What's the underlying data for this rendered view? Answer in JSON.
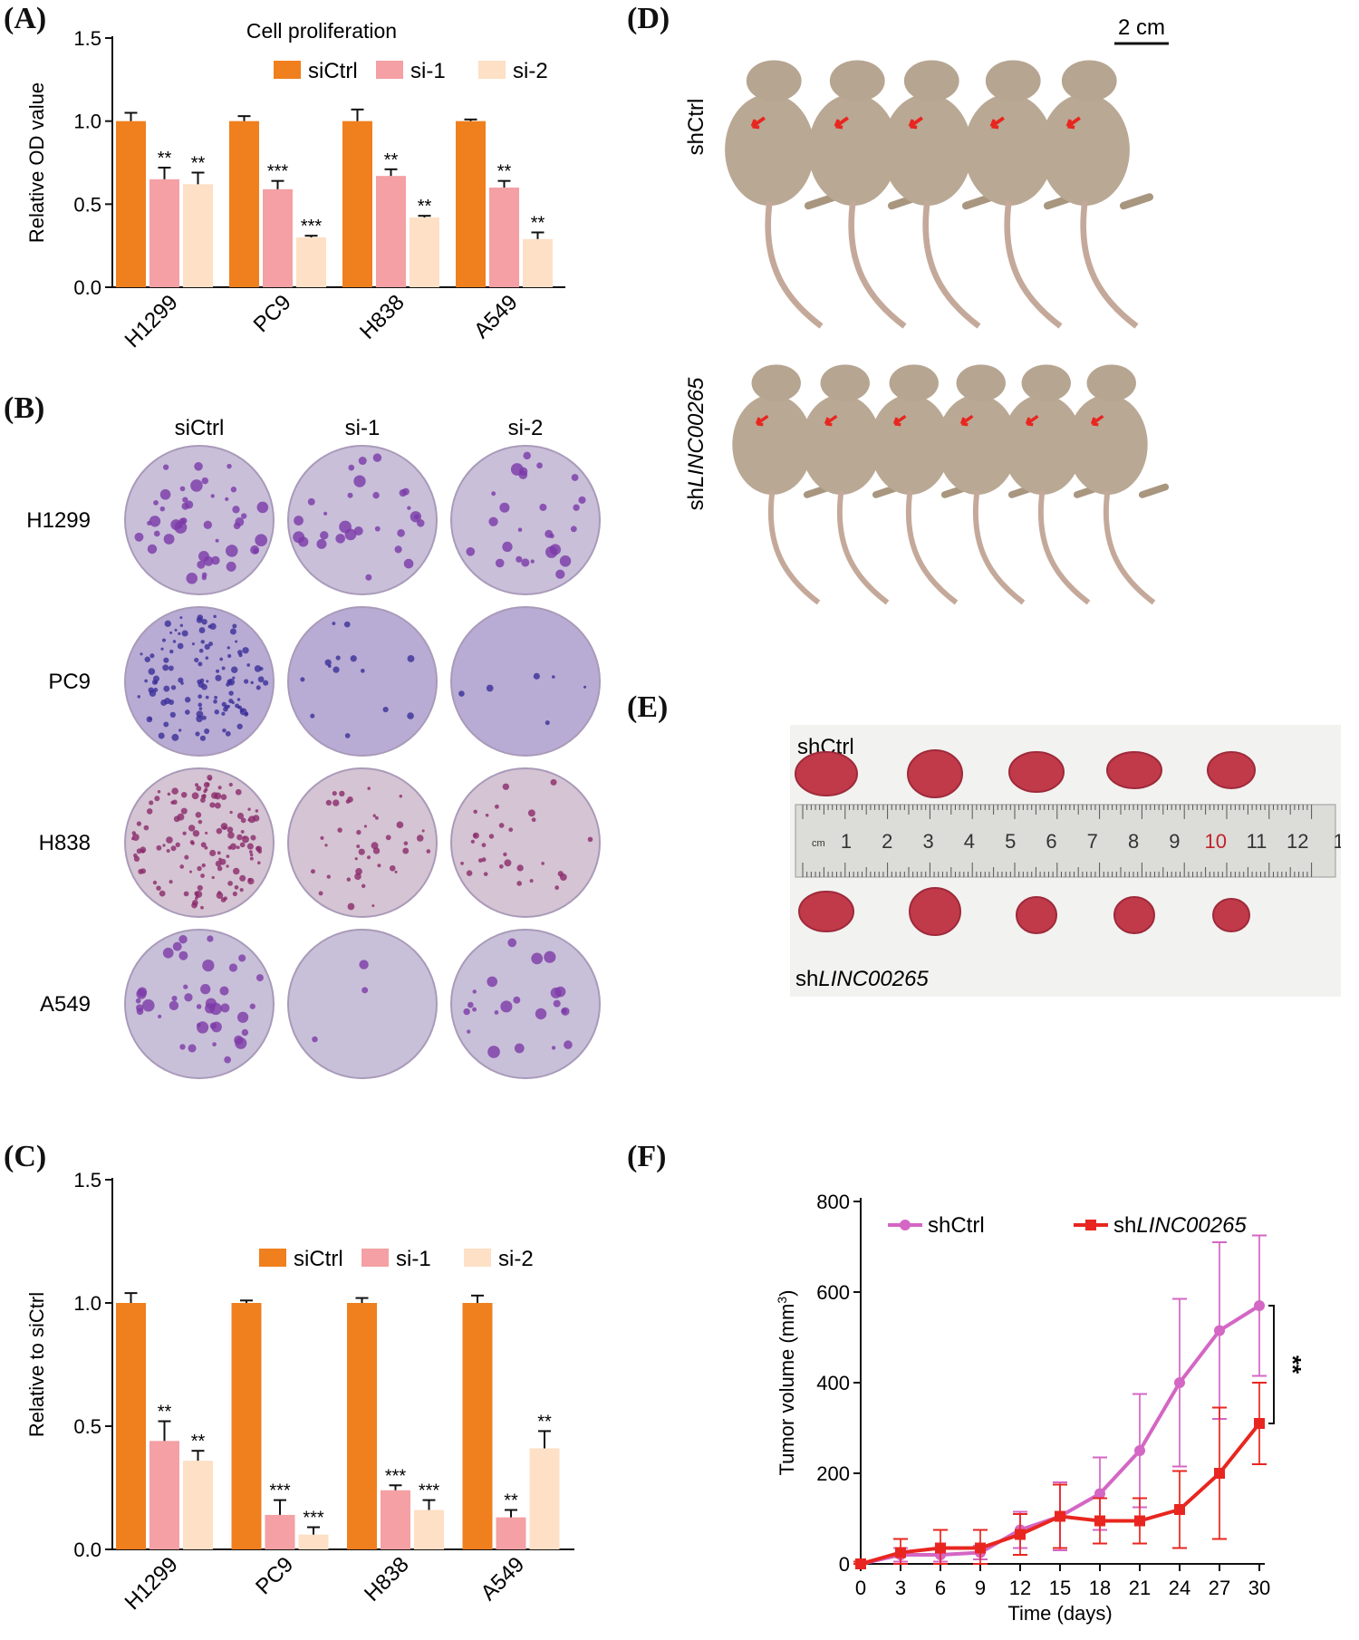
{
  "panels": {
    "A": "(A)",
    "B": "(B)",
    "C": "(C)",
    "D": "(D)",
    "E": "(E)",
    "F": "(F)"
  },
  "colors": {
    "siCtrl": "#f07f1e",
    "si1": "#f4a0a4",
    "si2": "#fde0c5",
    "shCtrl": "#d466c4",
    "shLINC": "#e8261f"
  },
  "chart_data": [
    {
      "id": "A",
      "type": "bar",
      "title": "Cell proliferation",
      "ylabel": "Relative OD value",
      "ylim": [
        0,
        1.5
      ],
      "yticks": [
        "0.0",
        "0.5",
        "1.0",
        "1.5"
      ],
      "categories": [
        "H1299",
        "PC9",
        "H838",
        "A549"
      ],
      "legend": [
        "siCtrl",
        "si-1",
        "si-2"
      ],
      "series": [
        {
          "name": "siCtrl",
          "values": [
            1.0,
            1.0,
            1.0,
            1.0
          ],
          "err": [
            0.05,
            0.03,
            0.07,
            0.01
          ],
          "sig": [
            "",
            "",
            "",
            ""
          ]
        },
        {
          "name": "si-1",
          "values": [
            0.65,
            0.59,
            0.67,
            0.6
          ],
          "err": [
            0.07,
            0.05,
            0.04,
            0.04
          ],
          "sig": [
            "**",
            "***",
            "**",
            "**"
          ]
        },
        {
          "name": "si-2",
          "values": [
            0.62,
            0.3,
            0.42,
            0.29
          ],
          "err": [
            0.07,
            0.01,
            0.01,
            0.04
          ],
          "sig": [
            "**",
            "***",
            "**",
            "**"
          ]
        }
      ]
    },
    {
      "id": "C",
      "type": "bar",
      "title": "",
      "ylabel": "Relative to siCtrl",
      "ylim": [
        0,
        1.5
      ],
      "yticks": [
        "0.0",
        "0.5",
        "1.0",
        "1.5"
      ],
      "categories": [
        "H1299",
        "PC9",
        "H838",
        "A549"
      ],
      "legend": [
        "siCtrl",
        "si-1",
        "si-2"
      ],
      "series": [
        {
          "name": "siCtrl",
          "values": [
            1.0,
            1.0,
            1.0,
            1.0
          ],
          "err": [
            0.04,
            0.01,
            0.02,
            0.03
          ],
          "sig": [
            "",
            "",
            "",
            ""
          ]
        },
        {
          "name": "si-1",
          "values": [
            0.44,
            0.14,
            0.24,
            0.13
          ],
          "err": [
            0.08,
            0.06,
            0.02,
            0.03
          ],
          "sig": [
            "**",
            "***",
            "***",
            "**"
          ]
        },
        {
          "name": "si-2",
          "values": [
            0.36,
            0.06,
            0.16,
            0.41
          ],
          "err": [
            0.04,
            0.03,
            0.04,
            0.07
          ],
          "sig": [
            "**",
            "***",
            "***",
            "**"
          ]
        }
      ]
    },
    {
      "id": "F",
      "type": "line",
      "xlabel": "Time (days)",
      "ylabel": "Tumor volume (mm",
      "ylabel_sup": "3",
      "ylabel_end": ")",
      "xlim": [
        0,
        30
      ],
      "ylim": [
        0,
        800
      ],
      "xticks": [
        "0",
        "3",
        "6",
        "9",
        "12",
        "15",
        "18",
        "21",
        "24",
        "27",
        "30"
      ],
      "yticks": [
        "0",
        "200",
        "400",
        "600",
        "800"
      ],
      "x": [
        0,
        3,
        6,
        9,
        12,
        15,
        18,
        21,
        24,
        27,
        30
      ],
      "series": [
        {
          "name": "shCtrl",
          "values": [
            0,
            20,
            20,
            25,
            75,
            105,
            155,
            250,
            400,
            515,
            570
          ],
          "err": [
            5,
            15,
            15,
            15,
            40,
            75,
            80,
            125,
            185,
            195,
            155
          ]
        },
        {
          "name": "shLINC00265",
          "values": [
            0,
            25,
            35,
            35,
            65,
            105,
            95,
            95,
            120,
            200,
            310
          ],
          "err": [
            5,
            30,
            40,
            40,
            45,
            70,
            50,
            50,
            85,
            145,
            90
          ]
        }
      ],
      "legend": [
        {
          "prefix": "shCtrl",
          "italic": ""
        },
        {
          "prefix": "sh",
          "italic": "LINC00265"
        }
      ],
      "sig": "**"
    }
  ],
  "panelB": {
    "columns": [
      "siCtrl",
      "si-1",
      "si-2"
    ],
    "rows": [
      "H1299",
      "PC9",
      "H838",
      "A549"
    ]
  },
  "panelD": {
    "scale": "2 cm",
    "group1": "shCtrl",
    "group2_prefix": "sh",
    "group2_italic": "LINC00265"
  },
  "panelE": {
    "top_label": "shCtrl",
    "bottom_prefix": "sh",
    "bottom_italic": "LINC00265",
    "ruler_unit": "cm",
    "ruler_numbers": [
      "1",
      "2",
      "3",
      "4",
      "5",
      "6",
      "7",
      "8",
      "9",
      "10",
      "11",
      "12",
      "1"
    ]
  }
}
